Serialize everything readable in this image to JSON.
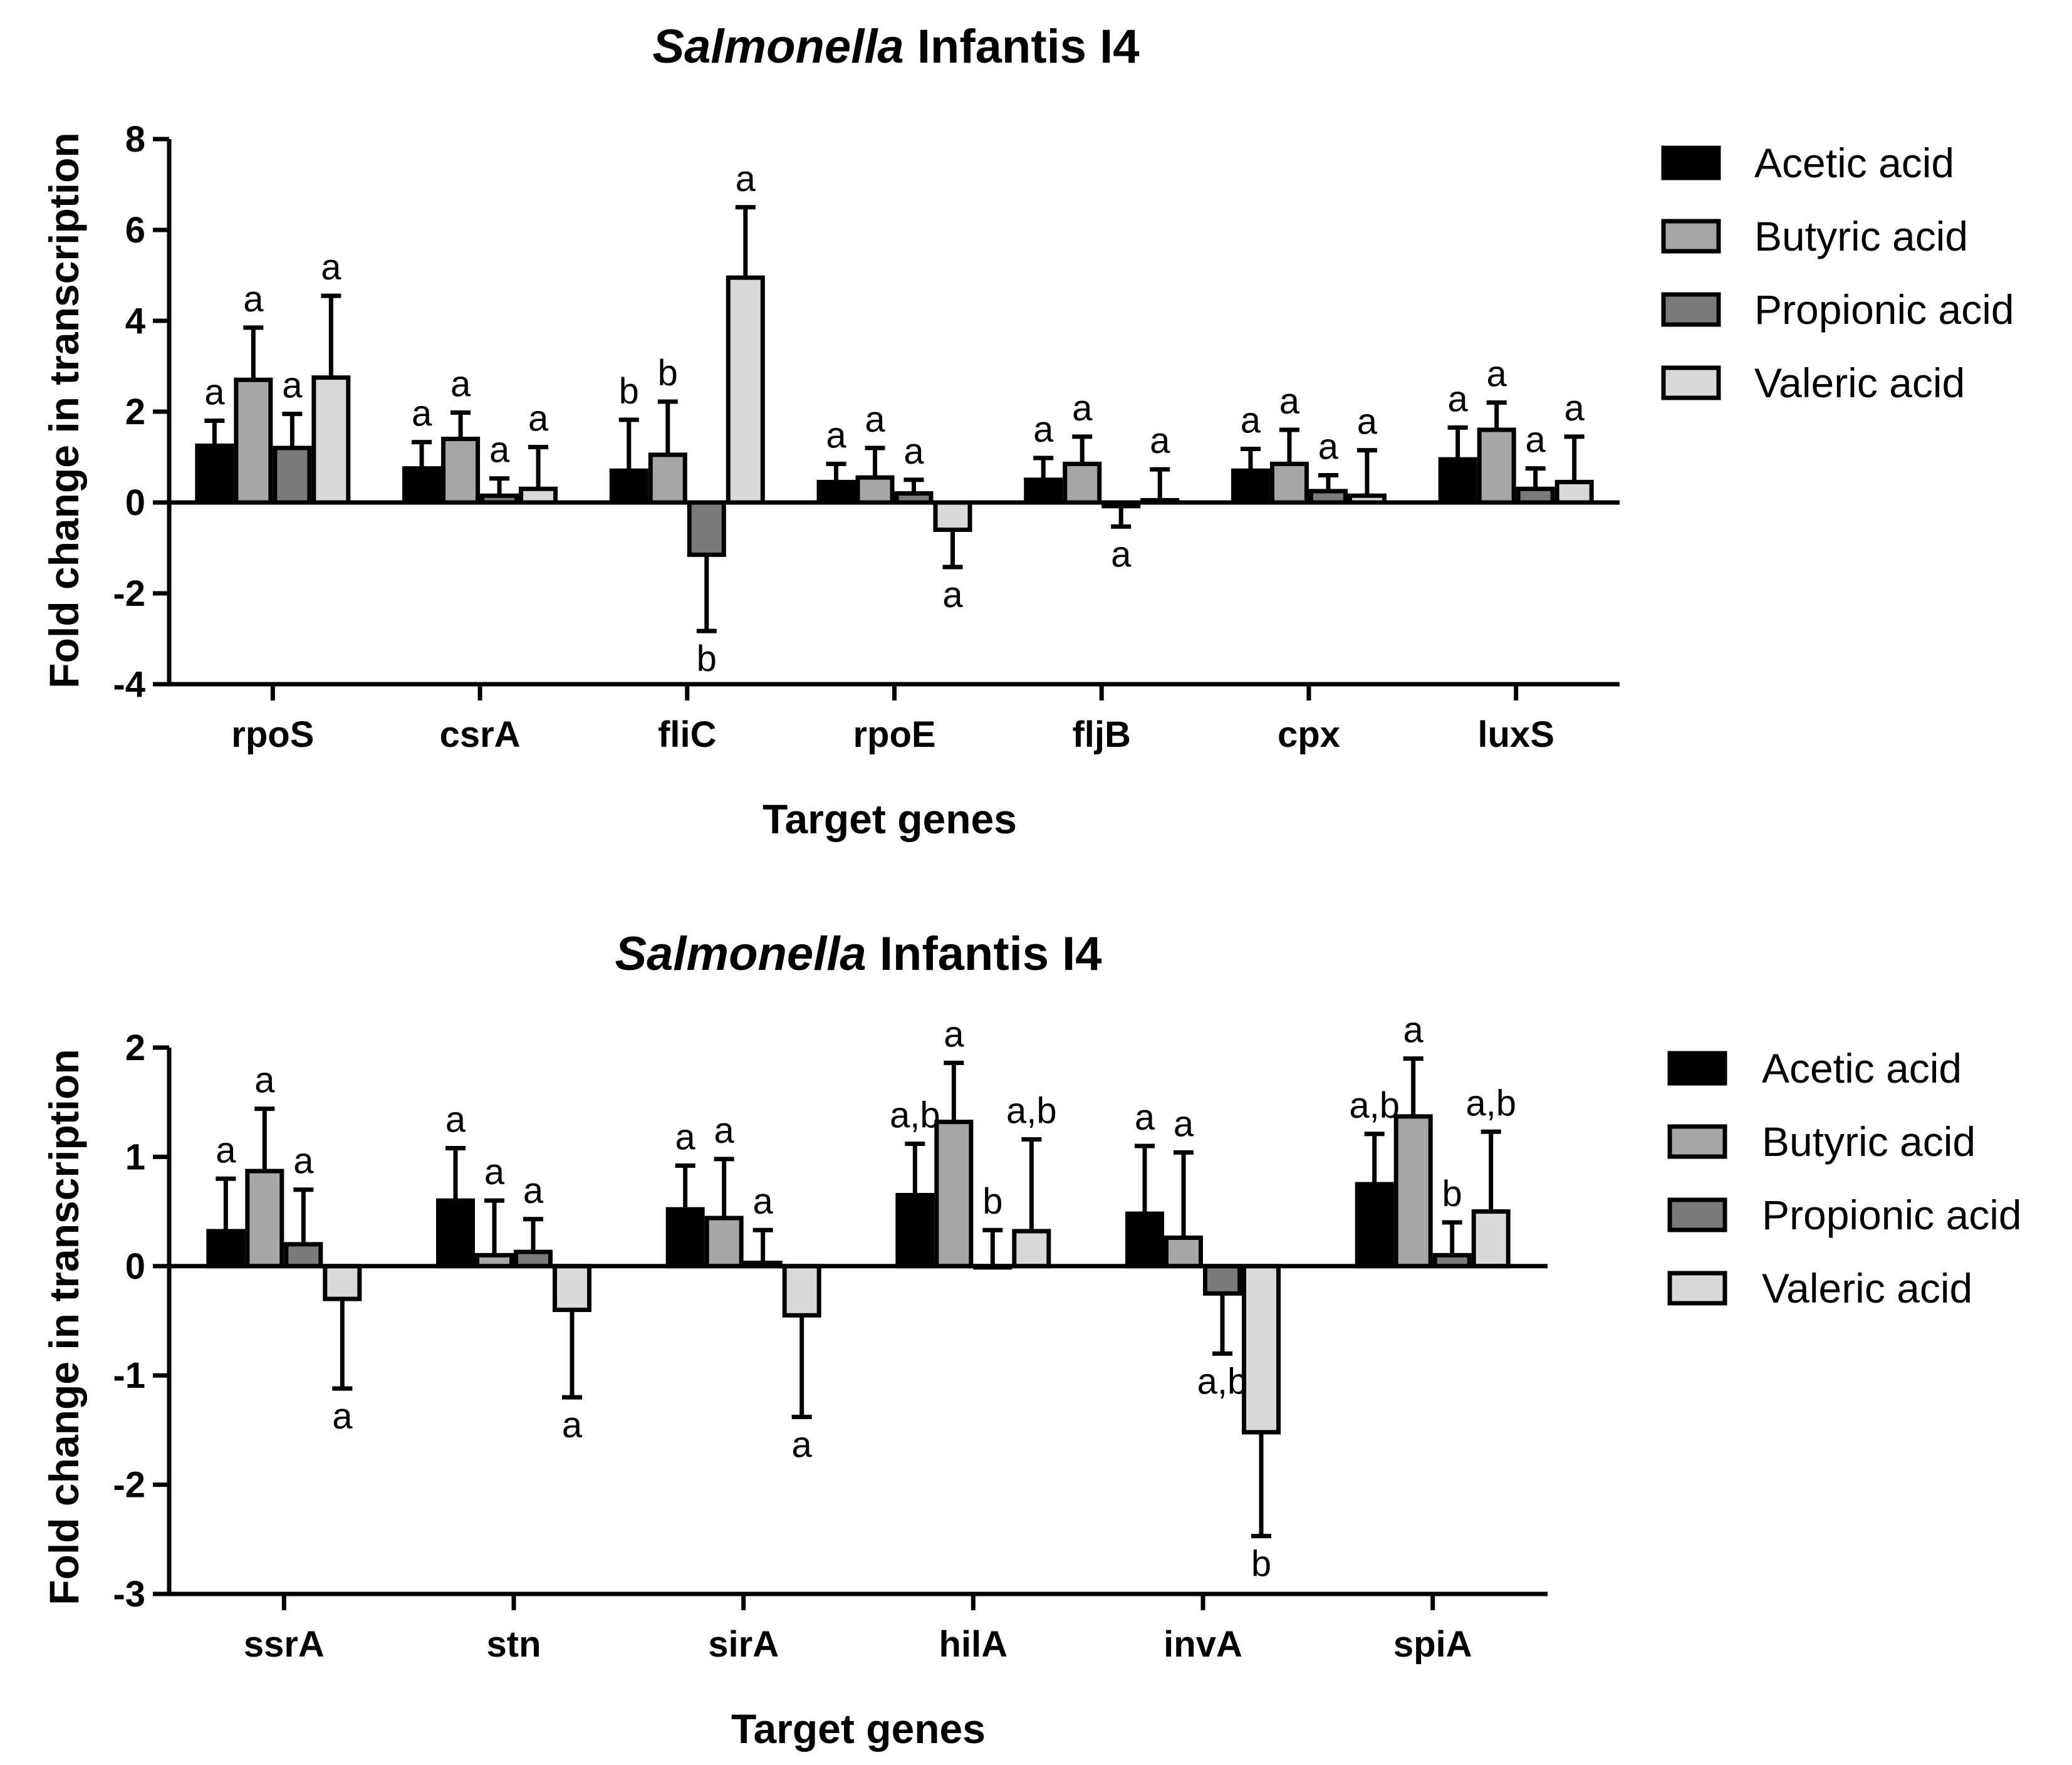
{
  "series_colors": [
    "#000000",
    "#a6a6a6",
    "#7a7a7a",
    "#d9d9d9"
  ],
  "chart_data": [
    {
      "type": "bar",
      "title_italic": "Salmonella",
      "title_rest": " Infantis I4",
      "xlabel": "Target genes",
      "ylabel": "Fold change in transcription",
      "ylim": [
        -4,
        8
      ],
      "yticks": [
        -4,
        -2,
        0,
        2,
        4,
        6,
        8
      ],
      "categories": [
        "rpoS",
        "csrA",
        "fliC",
        "rpoE",
        "fljB",
        "cpx",
        "luxS"
      ],
      "legend": [
        "Acetic acid",
        "Butyric acid",
        "Propionic acid",
        "Valeric acid"
      ],
      "series": [
        {
          "name": "Acetic acid",
          "values": [
            1.25,
            0.75,
            0.7,
            0.45,
            0.5,
            0.7,
            0.95
          ],
          "errors": [
            0.55,
            0.58,
            1.12,
            0.4,
            0.48,
            0.48,
            0.7
          ],
          "labels": [
            "a",
            "a",
            "b",
            "a",
            "a",
            "a",
            "a"
          ]
        },
        {
          "name": "Butyric acid",
          "values": [
            2.7,
            1.4,
            1.05,
            0.55,
            0.85,
            0.85,
            1.6
          ],
          "errors": [
            1.15,
            0.58,
            1.17,
            0.65,
            0.6,
            0.75,
            0.6
          ],
          "labels": [
            "a",
            "a",
            "b",
            "a",
            "a",
            "a",
            "a"
          ]
        },
        {
          "name": "Propionic acid",
          "values": [
            1.2,
            0.15,
            -1.15,
            0.2,
            -0.08,
            0.25,
            0.3
          ],
          "errors": [
            0.75,
            0.38,
            1.68,
            0.3,
            0.45,
            0.35,
            0.45
          ],
          "labels": [
            "a",
            "a",
            "b",
            "a",
            "a",
            "a",
            "a"
          ]
        },
        {
          "name": "Valeric acid",
          "values": [
            2.75,
            0.3,
            4.95,
            -0.6,
            0.05,
            0.15,
            0.45
          ],
          "errors": [
            1.8,
            0.92,
            1.55,
            0.82,
            0.68,
            1.0,
            1.0
          ],
          "labels": [
            "a",
            "a",
            "a",
            "a",
            "a",
            "a",
            "a"
          ]
        }
      ]
    },
    {
      "type": "bar",
      "title_italic": "Salmonella",
      "title_rest": " Infantis I4",
      "xlabel": "Target genes",
      "ylabel": "Fold change in transcription",
      "ylim": [
        -3,
        2
      ],
      "yticks": [
        -3,
        -2,
        -1,
        0,
        1,
        2
      ],
      "categories": [
        "ssrA",
        "stn",
        "sirA",
        "hilA",
        "invA",
        "spiA"
      ],
      "legend": [
        "Acetic acid",
        "Butyric acid",
        "Propionic acid",
        "Valeric acid"
      ],
      "series": [
        {
          "name": "Acetic acid",
          "values": [
            0.32,
            0.6,
            0.52,
            0.65,
            0.48,
            0.75
          ],
          "errors": [
            0.48,
            0.48,
            0.4,
            0.47,
            0.62,
            0.46
          ],
          "labels": [
            "a",
            "a",
            "a",
            "a,b",
            "a",
            "a,b"
          ]
        },
        {
          "name": "Butyric acid",
          "values": [
            0.87,
            0.1,
            0.44,
            1.32,
            0.26,
            1.37
          ],
          "errors": [
            0.57,
            0.5,
            0.54,
            0.54,
            0.78,
            0.53
          ],
          "labels": [
            "a",
            "a",
            "a",
            "a",
            "a",
            "a"
          ]
        },
        {
          "name": "Propionic acid",
          "values": [
            0.2,
            0.13,
            0.03,
            0.0,
            -0.25,
            0.1
          ],
          "errors": [
            0.5,
            0.3,
            0.3,
            0.33,
            0.55,
            0.3
          ],
          "labels": [
            "a",
            "a",
            "a",
            "b",
            "a,b",
            "b"
          ]
        },
        {
          "name": "Valeric acid",
          "values": [
            -0.3,
            -0.4,
            -0.45,
            0.32,
            -1.52,
            0.5
          ],
          "errors": [
            0.82,
            0.8,
            0.93,
            0.84,
            0.95,
            0.73
          ],
          "labels": [
            "a",
            "a",
            "a",
            "a,b",
            "b",
            "a,b"
          ]
        }
      ]
    }
  ]
}
